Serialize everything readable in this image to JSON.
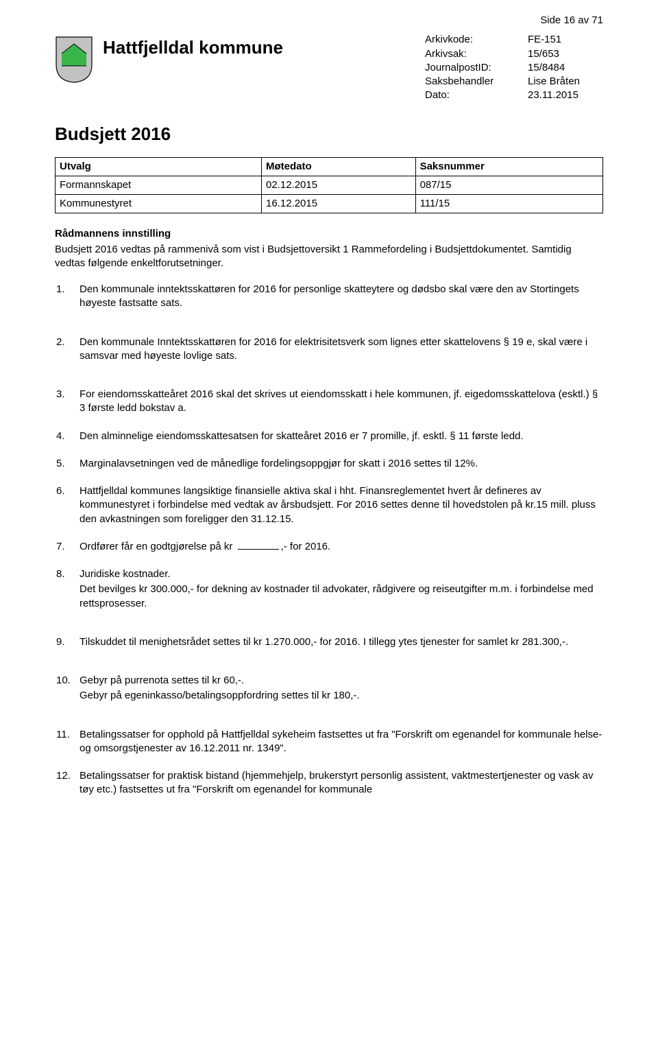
{
  "page_indicator": "Side 16 av 71",
  "kommune_name": "Hattfjelldal kommune",
  "meta": {
    "rows": [
      {
        "label": "Arkivkode:",
        "value": "FE-151"
      },
      {
        "label": "Arkivsak:",
        "value": "15/653"
      },
      {
        "label": "JournalpostID:",
        "value": "15/8484"
      },
      {
        "label": "Saksbehandler",
        "value": "Lise Bråten"
      },
      {
        "label": "Dato:",
        "value": "23.11.2015"
      }
    ]
  },
  "main_title": "Budsjett 2016",
  "utvalg_table": {
    "columns": [
      "Utvalg",
      "Møtedato",
      "Saksnummer"
    ],
    "rows": [
      [
        "Formannskapet",
        "02.12.2015",
        "087/15"
      ],
      [
        "Kommunestyret",
        "16.12.2015",
        "111/15"
      ]
    ]
  },
  "innstilling_head": "Rådmannens innstilling",
  "intro_text": "Budsjett 2016 vedtas på rammenivå som vist i Budsjettoversikt 1 Rammefordeling i Budsjettdokumentet. Samtidig vedtas følgende enkeltforutsetninger.",
  "items": [
    {
      "n": "1.",
      "text": "Den kommunale inntektsskattøren for 2016 for personlige skatteytere og dødsbo skal være den av Stortingets høyeste fastsatte sats.",
      "bigspace": true
    },
    {
      "n": "2.",
      "text": "Den kommunale Inntektsskattøren for 2016 for elektrisitetsverk som lignes etter skattelovens § 19 e, skal være i samsvar med høyeste lovlige sats.",
      "bigspace": true
    },
    {
      "n": "3.",
      "text": "For eiendomsskatteåret 2016 skal det skrives ut eiendomsskatt i hele kommunen, jf. eigedomsskattelova (esktl.) § 3 første ledd bokstav a."
    },
    {
      "n": "4.",
      "text": "Den alminnelige eiendomsskattesatsen for skatteåret 2016 er 7 promille, jf. esktl. § 11 første ledd."
    },
    {
      "n": "5.",
      "text": "Marginalavsetningen ved de månedlige fordelingsoppgjør for skatt i 2016 settes til 12%."
    },
    {
      "n": "6.",
      "text": "Hattfjelldal kommunes langsiktige finansielle aktiva skal i hht. Finansreglementet hvert år defineres av kommunestyret i forbindelse med vedtak av årsbudsjett. For 2016 settes denne til hovedstolen på kr.15 mill. pluss den avkastningen som foreligger den 31.12.15."
    },
    {
      "n": "7.",
      "pre": "Ordfører får en godtgjørelse på kr",
      "post": ",- for 2016.",
      "blank": true
    },
    {
      "n": "8.",
      "text": "Juridiske kostnader.",
      "sub": "Det bevilges kr 300.000,- for dekning av kostnader til advokater, rådgivere og reiseutgifter m.m. i forbindelse med rettsprosesser.",
      "bigspace": true
    },
    {
      "n": "9.",
      "text": "Tilskuddet til menighetsrådet settes til kr 1.270.000,- for 2016.  I tillegg ytes tjenester for samlet kr 281.300,-.",
      "bigspace": true
    },
    {
      "n": "10.",
      "text": "Gebyr på purrenota settes til kr 60,-.",
      "sub": "Gebyr på egeninkasso/betalingsoppfordring settes til kr 180,-.",
      "bigspace": true
    },
    {
      "n": "11.",
      "text": "Betalingssatser for opphold på Hattfjelldal sykeheim fastsettes ut fra \"Forskrift om egenandel for kommunale helse- og omsorgstjenester av 16.12.2011 nr. 1349\"."
    },
    {
      "n": "12.",
      "text": "Betalingssatser for praktisk bistand (hjemmehjelp, brukerstyrt personlig assistent, vaktmestertjenester og vask av tøy etc.) fastsettes ut fra \"Forskrift om egenandel for kommunale"
    }
  ],
  "colors": {
    "shield_green": "#39b54a",
    "shield_gray": "#c2c2c2",
    "shield_border": "#000000"
  }
}
